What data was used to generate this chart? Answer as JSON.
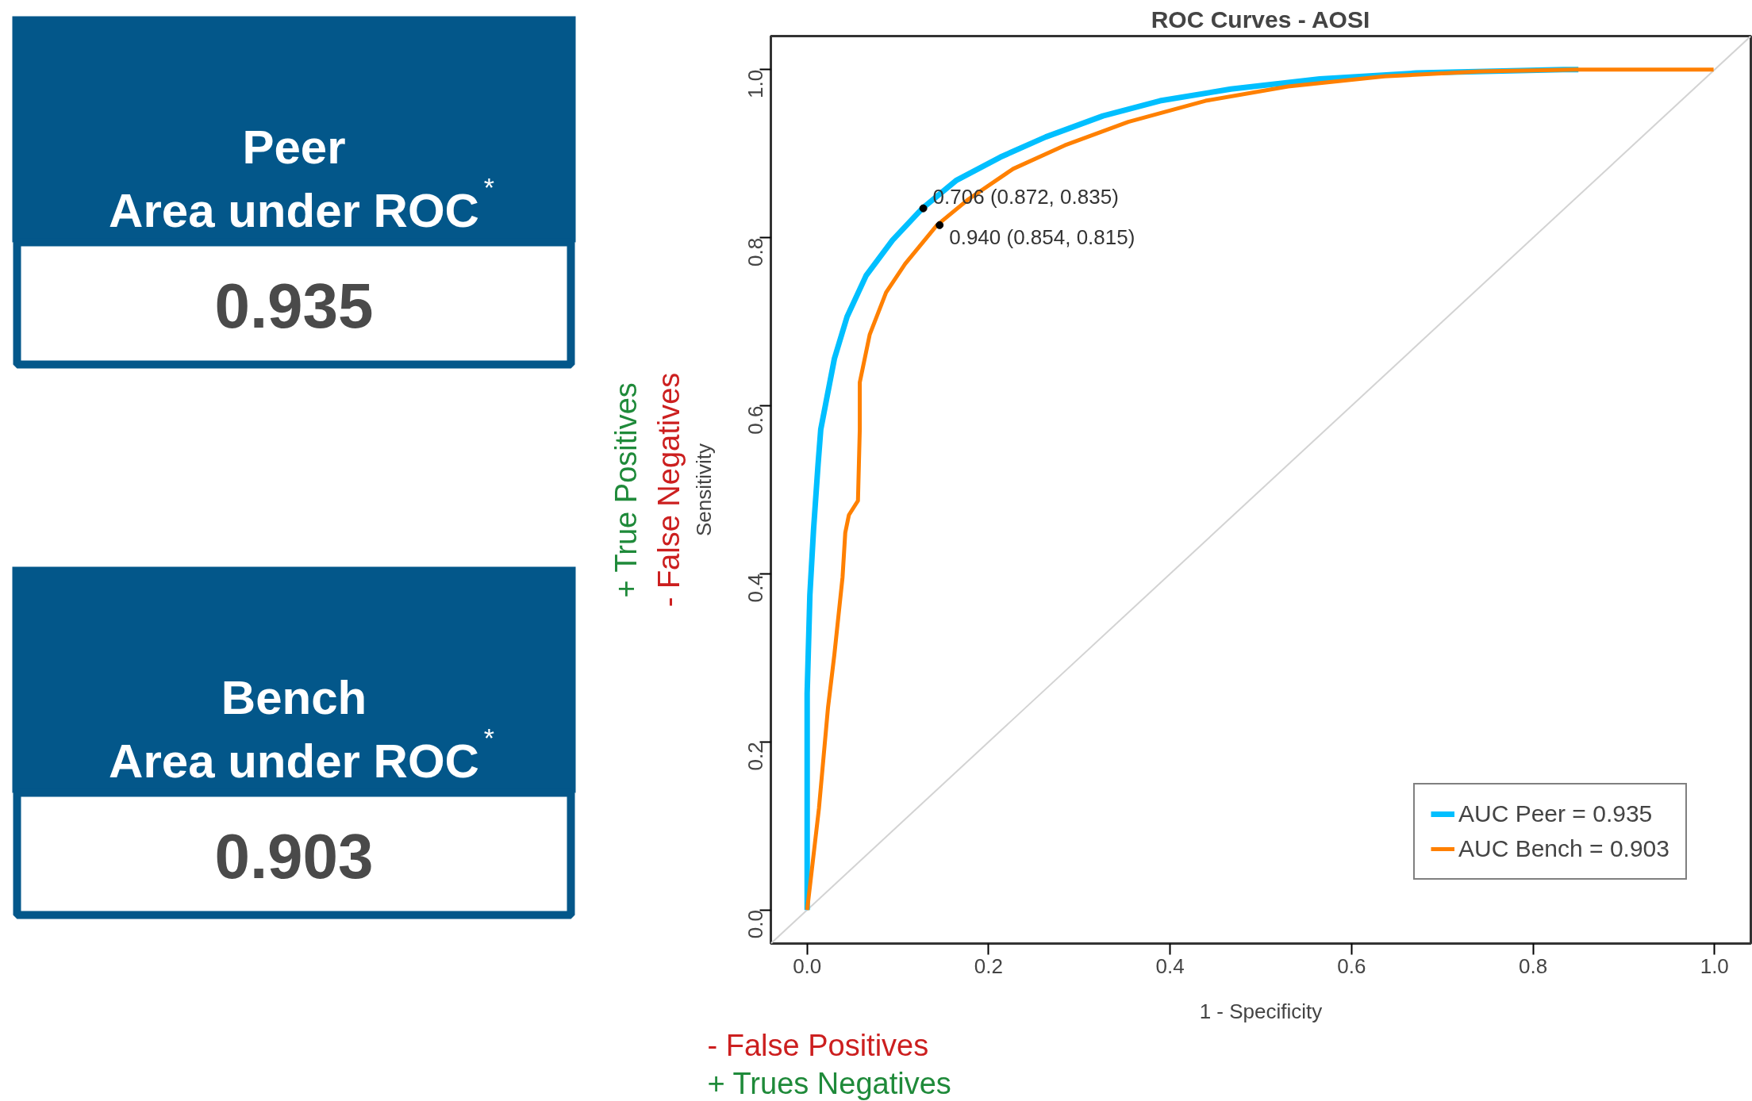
{
  "chart_data": [
    {
      "type": "other",
      "title": "Peer\nArea under ROC$^{*}$",
      "annotations": [
        "0.935"
      ]
    },
    {
      "type": "other",
      "title": "Bench\nArea under ROC$^{*}$",
      "annotations": [
        "0.903"
      ]
    },
    {
      "type": "line",
      "title": "ROC Curves - AOSI",
      "xlabel": "1 - Specificity",
      "ylabel": "Sensitivity",
      "xlim": [
        -0.04,
        1.04
      ],
      "ylim": [
        -0.04,
        1.04
      ],
      "xticks": [
        {
          "value": 0,
          "label": "0.0"
        },
        0.2,
        0.4,
        0.6,
        0.8,
        {
          "value": 1,
          "label": "1.0"
        }
      ],
      "yticks": [
        {
          "value": 0,
          "label": "0.0"
        },
        0.2,
        0.4,
        0.6,
        0.8,
        {
          "value": 1,
          "label": "1.0"
        }
      ],
      "grid": false,
      "legend": "bottom right",
      "line_style": "solid",
      "series": [
        {
          "color": "#d3d3d3",
          "x": [
            -0.04,
            1.04
          ],
          "values": [
            -0.04,
            1.04
          ]
        },
        {
          "name": "AUC Peer = 0.935",
          "color": "#00bfff",
          "x": [
            0,
            0,
            0.003,
            0.007,
            0.012,
            0.015,
            0.02,
            0.03,
            0.044,
            0.065,
            0.094,
            0.127,
            0.164,
            0.213,
            0.263,
            0.326,
            0.389,
            0.467,
            0.565,
            0.671,
            0.833,
            0.85
          ],
          "values": [
            0,
            0.258,
            0.375,
            0.452,
            0.53,
            0.572,
            0.6,
            0.656,
            0.706,
            0.755,
            0.797,
            0.835,
            0.868,
            0.896,
            0.92,
            0.945,
            0.963,
            0.977,
            0.989,
            0.996,
            1.0,
            1.0
          ]
        },
        {
          "name": "AUC Bench = 0.903",
          "color": "#ff8000",
          "x": [
            0,
            0.004,
            0.013,
            0.023,
            0.03,
            0.039,
            0.042,
            0.046,
            0.056,
            0.057,
            0.058,
            0.058,
            0.069,
            0.087,
            0.108,
            0.143,
            0.178,
            0.227,
            0.284,
            0.354,
            0.439,
            0.53,
            0.636,
            0.742,
            0.847,
            0.999
          ],
          "values": [
            0,
            0.037,
            0.121,
            0.241,
            0.304,
            0.396,
            0.449,
            0.47,
            0.487,
            0.53,
            0.572,
            0.628,
            0.685,
            0.735,
            0.769,
            0.815,
            0.846,
            0.882,
            0.91,
            0.938,
            0.963,
            0.98,
            0.992,
            0.998,
            1.0,
            1.0
          ]
        },
        {
          "type": "scatter",
          "marker": "circle",
          "color": "#000000",
          "x": [
            0.128,
            0.146
          ],
          "values": [
            0.835,
            0.815
          ]
        }
      ],
      "annotations": [
        {
          "text": "0.706 (0.872, 0.835)",
          "x": 0.128,
          "y": 0.835
        },
        {
          "text": "0.940 (0.854, 0.815)",
          "x": 0.146,
          "y": 0.815
        },
        "- False Negatives",
        "+ True Positives",
        "- False Positives",
        "+ Trues Negatives"
      ]
    }
  ]
}
